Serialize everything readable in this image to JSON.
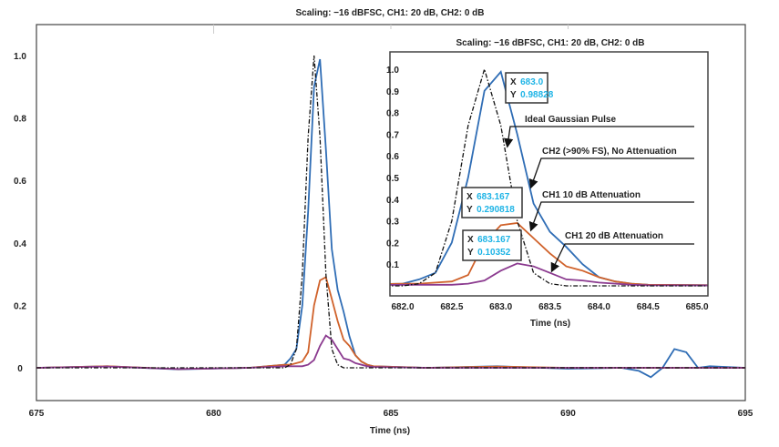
{
  "chart_data": [
    {
      "type": "line",
      "title": "Scaling: −16 dBFSC, CH1: 20 dB, CH2: 0 dB",
      "xlabel": "Time (ns)",
      "ylabel": "",
      "xlim": [
        675,
        695
      ],
      "ylim": [
        -0.1,
        1.1
      ],
      "xticks": [
        "675",
        "680",
        "685",
        "690",
        "695"
      ],
      "yticks": [
        "0",
        "0.2",
        "0.4",
        "0.6",
        "0.8",
        "1.0"
      ],
      "grid": false
    },
    {
      "type": "line",
      "title": "Scaling: −16 dBFSC, CH1: 20 dB, CH2: 0 dB",
      "xlabel": "Time (ns)",
      "ylabel": "",
      "xlim": [
        681.95,
        685.05
      ],
      "ylim": [
        -0.04,
        1.05
      ],
      "xticks": [
        "682.0",
        "682.5",
        "683.0",
        "683.5",
        "684.0",
        "684.5",
        "685.0"
      ],
      "yticks": [
        "0.1",
        "0.2",
        "0.3",
        "0.4",
        "0.5",
        "0.6",
        "0.7",
        "0.8",
        "0.9",
        "1.0"
      ],
      "grid": false,
      "annotations": [
        {
          "text": "Ideal Gaussian Pulse"
        },
        {
          "text": "CH2 (>90% FS), No Attenuation"
        },
        {
          "text": "CH1  10 dB Attenuation"
        },
        {
          "text": "CH1  20 dB Attenuation"
        }
      ],
      "datatips": [
        {
          "x_label": "X",
          "x": "683.0",
          "y_label": "Y",
          "y": "0.98828"
        },
        {
          "x_label": "X",
          "x": "683.167",
          "y_label": "Y",
          "y": "0.290818"
        },
        {
          "x_label": "X",
          "x": "683.167",
          "y_label": "Y",
          "y": "0.10352"
        }
      ]
    }
  ],
  "series": [
    {
      "id": "ch2",
      "color": "#2f6db5",
      "dash": "",
      "x": [
        675,
        677,
        679,
        681,
        682,
        682.167,
        682.333,
        682.5,
        682.667,
        682.833,
        683.0,
        683.167,
        683.333,
        683.5,
        683.667,
        683.833,
        684.0,
        684.167,
        684.333,
        684.5,
        686,
        688,
        690,
        691.5,
        692,
        692.333,
        692.667,
        693.0,
        693.333,
        693.667,
        694,
        695
      ],
      "y": [
        0,
        0.005,
        -0.005,
        0,
        0.01,
        0.03,
        0.06,
        0.2,
        0.5,
        0.9,
        0.988,
        0.7,
        0.38,
        0.25,
        0.18,
        0.1,
        0.04,
        0.02,
        0.01,
        0.005,
        0,
        0.005,
        -0.003,
        0,
        -0.01,
        -0.03,
        0.0,
        0.06,
        0.05,
        0.0,
        0.005,
        0
      ]
    },
    {
      "id": "ch1-10db",
      "color": "#d0622b",
      "dash": "",
      "x": [
        675,
        677,
        679,
        681,
        682,
        682.167,
        682.333,
        682.5,
        682.667,
        682.833,
        683.0,
        683.167,
        683.333,
        683.5,
        683.667,
        683.833,
        684.0,
        684.167,
        684.333,
        684.5,
        686,
        688,
        690,
        695
      ],
      "y": [
        0,
        0.005,
        -0.004,
        0,
        0.01,
        0.01,
        0.015,
        0.02,
        0.05,
        0.2,
        0.28,
        0.29,
        0.22,
        0.15,
        0.09,
        0.07,
        0.04,
        0.02,
        0.01,
        0.005,
        0,
        0.004,
        0,
        0
      ]
    },
    {
      "id": "ch1-20db",
      "color": "#8b3a8f",
      "dash": "",
      "x": [
        675,
        677,
        679,
        681,
        682,
        682.5,
        682.667,
        682.833,
        683.0,
        683.167,
        683.333,
        683.5,
        683.667,
        683.833,
        684.0,
        684.333,
        684.5,
        686,
        690,
        695
      ],
      "y": [
        0,
        0.004,
        -0.004,
        0,
        0.005,
        0.005,
        0.01,
        0.025,
        0.07,
        0.1035,
        0.09,
        0.06,
        0.03,
        0.025,
        0.015,
        0.005,
        0.003,
        0,
        0,
        0
      ]
    },
    {
      "id": "ideal",
      "color": "#111111",
      "dash": "5,2,1.5,2",
      "x": [
        675,
        681,
        682,
        682.167,
        682.333,
        682.5,
        682.667,
        682.833,
        683.0,
        683.167,
        683.333,
        683.5,
        683.667,
        684,
        695
      ],
      "y": [
        0,
        0,
        0,
        0.01,
        0.06,
        0.3,
        0.74,
        1.0,
        0.74,
        0.3,
        0.06,
        0.01,
        0,
        0,
        0
      ]
    }
  ],
  "colors": {
    "datatip_value": "#1eb4e6",
    "frame": "#444444"
  }
}
